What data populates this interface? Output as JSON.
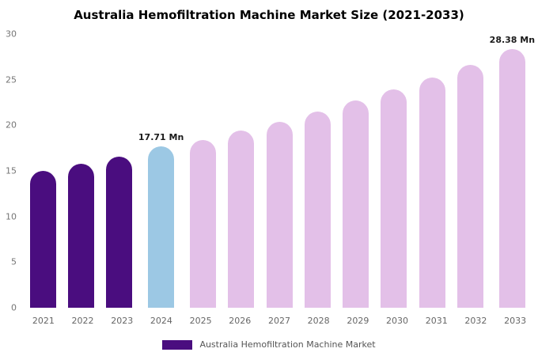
{
  "title": "Australia Hemofiltration Machine Market Size (2021-2033)",
  "legend": {
    "label": "Australia Hemofiltration Machine Market",
    "swatch_color": "#4A0D7F"
  },
  "colors": {
    "historical": "#4A0D7F",
    "current_year": "#9CC8E4",
    "forecast": "#E3C0E8",
    "axis_text": "#757575",
    "annotation_text": "#1a1a1a",
    "background": "#ffffff"
  },
  "chart_data": {
    "type": "bar",
    "title": "Australia Hemofiltration Machine Market Size (2021-2033)",
    "xlabel": "",
    "ylabel": "",
    "ylim": [
      0,
      30
    ],
    "yticks": [
      0,
      5,
      10,
      15,
      20,
      25,
      30
    ],
    "grid": false,
    "legend_position": "bottom",
    "unit": "Mn",
    "categories": [
      "2021",
      "2022",
      "2023",
      "2024",
      "2025",
      "2026",
      "2027",
      "2028",
      "2029",
      "2030",
      "2031",
      "2032",
      "2033"
    ],
    "values": [
      15.0,
      15.8,
      16.6,
      17.71,
      18.4,
      19.4,
      20.4,
      21.5,
      22.7,
      23.9,
      25.2,
      26.6,
      28.38
    ],
    "bar_colors": [
      "#4A0D7F",
      "#4A0D7F",
      "#4A0D7F",
      "#9CC8E4",
      "#E3C0E8",
      "#E3C0E8",
      "#E3C0E8",
      "#E3C0E8",
      "#E3C0E8",
      "#E3C0E8",
      "#E3C0E8",
      "#E3C0E8",
      "#E3C0E8"
    ],
    "annotations": [
      {
        "category": "2024",
        "index": 3,
        "text": "17.71 Mn"
      },
      {
        "category": "2033",
        "index": 12,
        "text": "28.38 Mn"
      }
    ]
  }
}
